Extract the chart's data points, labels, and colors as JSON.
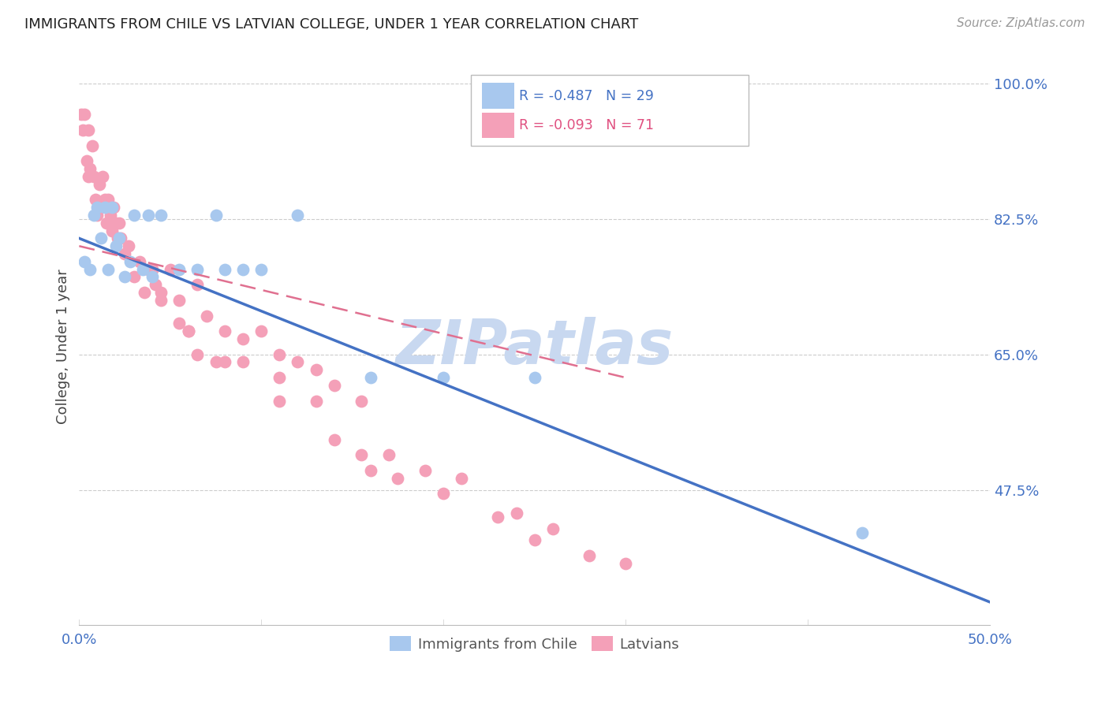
{
  "title": "IMMIGRANTS FROM CHILE VS LATVIAN COLLEGE, UNDER 1 YEAR CORRELATION CHART",
  "source_text": "Source: ZipAtlas.com",
  "ylabel": "College, Under 1 year",
  "xlim": [
    0.0,
    0.5
  ],
  "ylim": [
    0.3,
    1.02
  ],
  "xtick_positions": [
    0.0,
    0.1,
    0.2,
    0.3,
    0.4,
    0.5
  ],
  "xticklabels": [
    "0.0%",
    "",
    "",
    "",
    "",
    "50.0%"
  ],
  "yticks_right": [
    1.0,
    0.825,
    0.65,
    0.475
  ],
  "yticks_right_labels": [
    "100.0%",
    "82.5%",
    "65.0%",
    "47.5%"
  ],
  "color_blue": "#A8C8EE",
  "color_pink": "#F4A0B8",
  "color_blue_line": "#4472C4",
  "color_pink_line": "#E07090",
  "watermark_color": "#C8D8F0",
  "blue_points_x": [
    0.003,
    0.006,
    0.008,
    0.01,
    0.012,
    0.014,
    0.016,
    0.018,
    0.02,
    0.022,
    0.025,
    0.028,
    0.03,
    0.035,
    0.038,
    0.04,
    0.045,
    0.055,
    0.065,
    0.075,
    0.08,
    0.09,
    0.1,
    0.12,
    0.16,
    0.2,
    0.25,
    0.43
  ],
  "blue_points_y": [
    0.77,
    0.76,
    0.83,
    0.84,
    0.8,
    0.84,
    0.76,
    0.84,
    0.79,
    0.8,
    0.75,
    0.77,
    0.83,
    0.76,
    0.83,
    0.75,
    0.83,
    0.76,
    0.76,
    0.83,
    0.76,
    0.76,
    0.76,
    0.83,
    0.62,
    0.62,
    0.62,
    0.42
  ],
  "pink_points_x": [
    0.001,
    0.002,
    0.003,
    0.004,
    0.005,
    0.005,
    0.006,
    0.007,
    0.008,
    0.009,
    0.01,
    0.011,
    0.012,
    0.013,
    0.014,
    0.015,
    0.016,
    0.017,
    0.018,
    0.019,
    0.02,
    0.021,
    0.022,
    0.023,
    0.025,
    0.027,
    0.03,
    0.033,
    0.036,
    0.04,
    0.042,
    0.045,
    0.05,
    0.055,
    0.06,
    0.065,
    0.07,
    0.08,
    0.09,
    0.1,
    0.11,
    0.12,
    0.13,
    0.14,
    0.155,
    0.17,
    0.19,
    0.21,
    0.24,
    0.26,
    0.038,
    0.045,
    0.055,
    0.065,
    0.075,
    0.09,
    0.11,
    0.13,
    0.155,
    0.175,
    0.2,
    0.23,
    0.25,
    0.28,
    0.3,
    0.04,
    0.06,
    0.08,
    0.11,
    0.14,
    0.16
  ],
  "pink_points_y": [
    0.96,
    0.94,
    0.96,
    0.9,
    0.88,
    0.94,
    0.89,
    0.92,
    0.88,
    0.85,
    0.83,
    0.87,
    0.84,
    0.88,
    0.85,
    0.82,
    0.85,
    0.83,
    0.81,
    0.84,
    0.82,
    0.8,
    0.82,
    0.8,
    0.78,
    0.79,
    0.75,
    0.77,
    0.73,
    0.76,
    0.74,
    0.73,
    0.76,
    0.72,
    0.68,
    0.74,
    0.7,
    0.68,
    0.67,
    0.68,
    0.65,
    0.64,
    0.63,
    0.61,
    0.59,
    0.52,
    0.5,
    0.49,
    0.445,
    0.425,
    0.76,
    0.72,
    0.69,
    0.65,
    0.64,
    0.64,
    0.62,
    0.59,
    0.52,
    0.49,
    0.47,
    0.44,
    0.41,
    0.39,
    0.38,
    0.76,
    0.68,
    0.64,
    0.59,
    0.54,
    0.5
  ],
  "blue_trend_x": [
    0.0,
    0.5
  ],
  "blue_trend_y": [
    0.8,
    0.33
  ],
  "pink_trend_x": [
    0.0,
    0.3
  ],
  "pink_trend_y": [
    0.79,
    0.62
  ]
}
